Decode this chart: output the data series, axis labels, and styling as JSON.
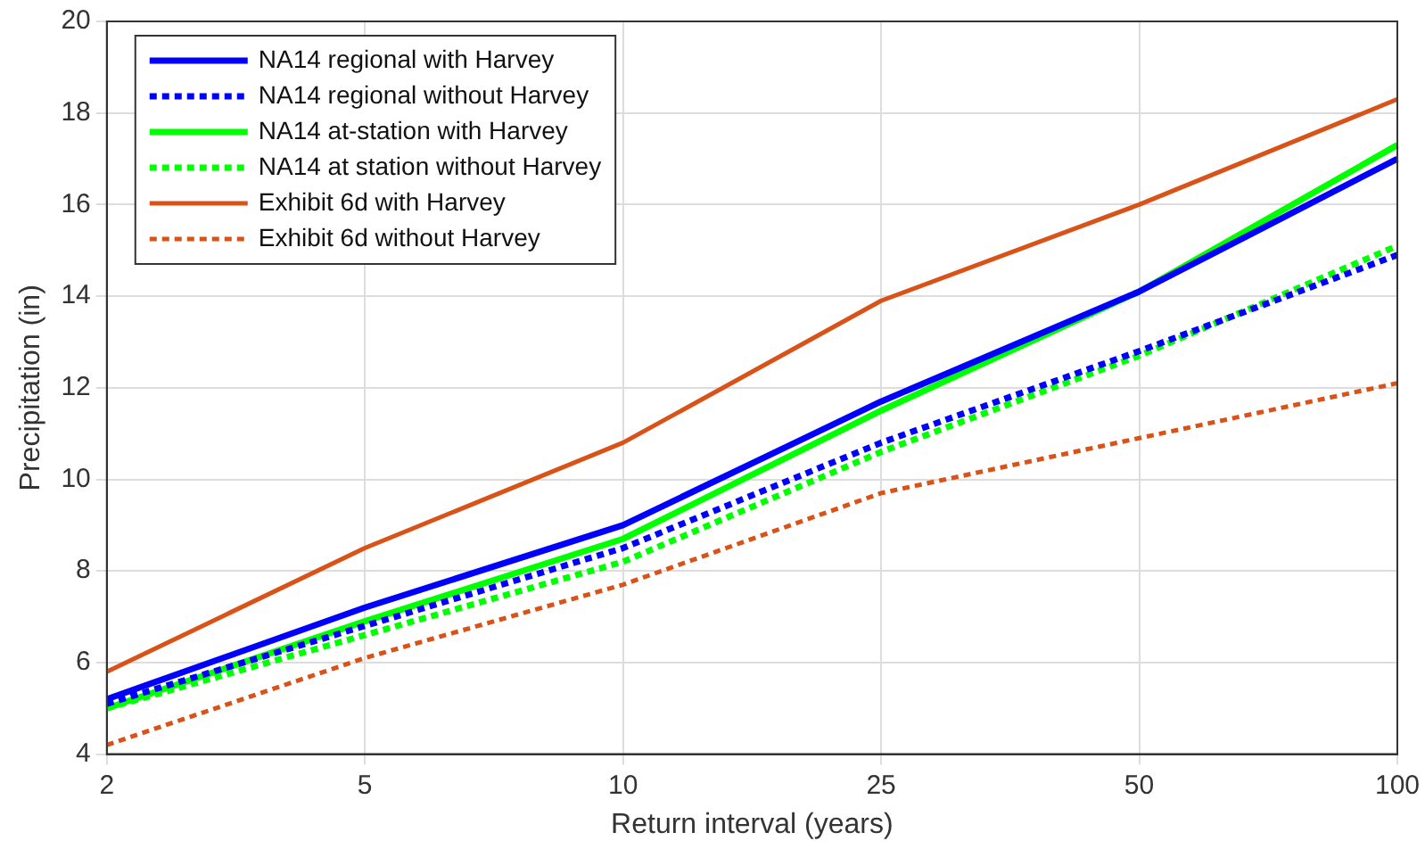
{
  "chart_data": {
    "type": "line",
    "xlabel": "Return interval (years)",
    "ylabel": "Precipitation (in)",
    "categories": [
      "2",
      "5",
      "10",
      "25",
      "50",
      "100"
    ],
    "ylim": [
      4,
      20
    ],
    "yticks": [
      4,
      6,
      8,
      10,
      12,
      14,
      16,
      18,
      20
    ],
    "grid": true,
    "legend": "top left",
    "marker": "none",
    "series": [
      {
        "name": "NA14 regional with Harvey",
        "color": "#0000ff",
        "line_style": "solid",
        "values": [
          5.2,
          7.2,
          9.0,
          11.7,
          14.1,
          17.0
        ]
      },
      {
        "name": "NA14 regional without Harvey",
        "color": "#0000ff",
        "line_style": "dotted",
        "values": [
          5.1,
          6.8,
          8.5,
          10.8,
          12.8,
          14.9
        ]
      },
      {
        "name": "NA14 at-station with Harvey",
        "color": "#00ff00",
        "line_style": "solid",
        "values": [
          5.0,
          6.9,
          8.7,
          11.5,
          14.1,
          17.3
        ]
      },
      {
        "name": "NA14 at station without Harvey",
        "color": "#00ff00",
        "line_style": "dotted",
        "values": [
          5.0,
          6.6,
          8.2,
          10.6,
          12.7,
          15.1
        ]
      },
      {
        "name": "Exhibit 6d with Harvey",
        "color": "#d95319",
        "line_style": "solid",
        "values": [
          5.8,
          8.5,
          10.8,
          13.9,
          16.0,
          18.3
        ]
      },
      {
        "name": "Exhibit 6d without Harvey",
        "color": "#d95319",
        "line_style": "dotted",
        "values": [
          4.2,
          6.1,
          7.7,
          9.7,
          10.9,
          12.1
        ]
      }
    ]
  }
}
